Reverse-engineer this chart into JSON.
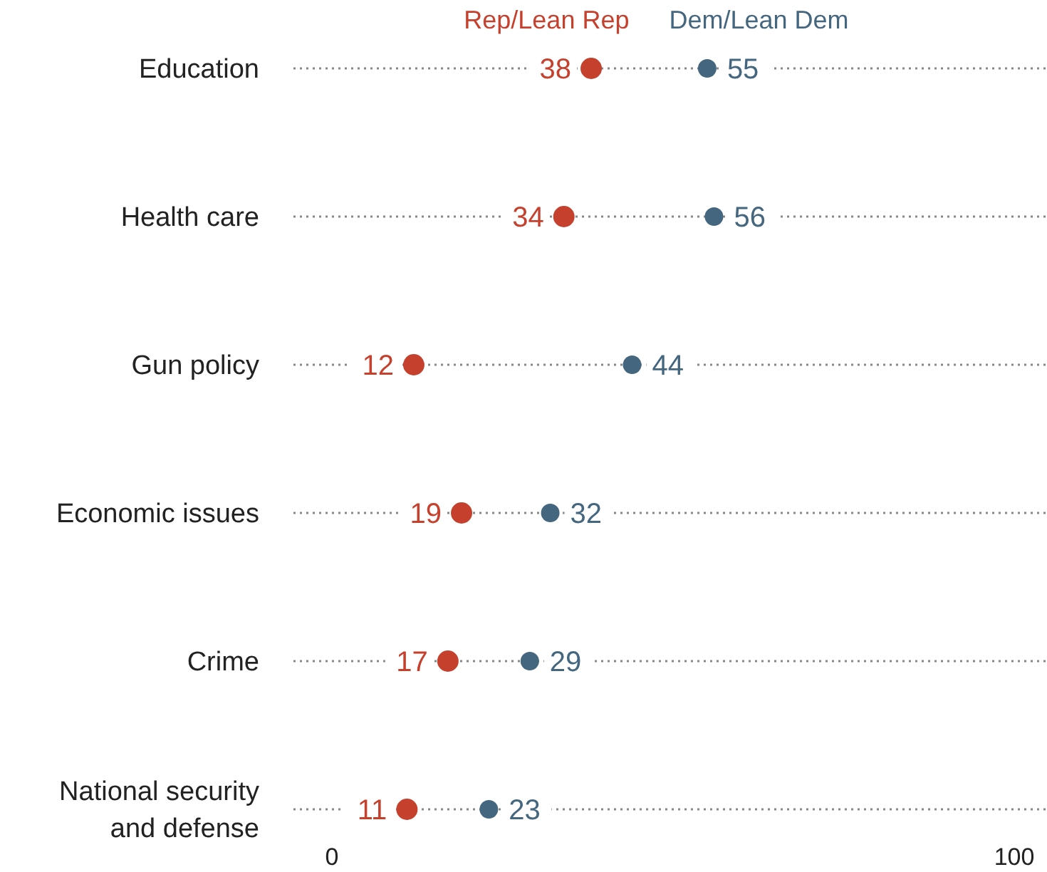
{
  "chart_data": {
    "type": "scatter",
    "orientation": "horizontal",
    "categories": [
      "Education",
      "Health care",
      "Gun policy",
      "Economic issues",
      "Crime",
      "National security and defense"
    ],
    "series": [
      {
        "name": "Rep/Lean Rep",
        "color": "#c5402d",
        "values": [
          38,
          34,
          12,
          19,
          17,
          11
        ]
      },
      {
        "name": "Dem/Lean Dem",
        "color": "#44667f",
        "values": [
          55,
          56,
          44,
          32,
          29,
          23
        ]
      }
    ],
    "xlim": [
      0,
      100
    ],
    "xticks": [
      0,
      100
    ],
    "data_labels": true,
    "legend": "top",
    "marker": "circle",
    "grid": "y"
  }
}
